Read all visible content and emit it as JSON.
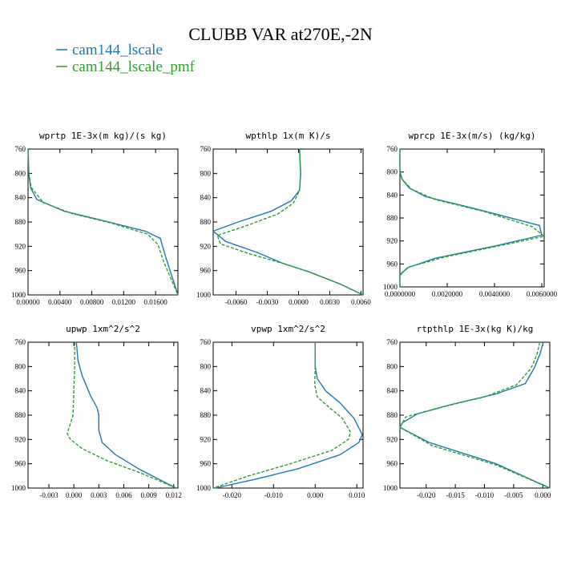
{
  "figure": {
    "title": "CLUBB VAR at270E,-2N",
    "colors": {
      "s0": "#1f77b4",
      "s1": "#2ca02c"
    },
    "legend": [
      {
        "name": "cam144_lscale",
        "color": "#1f77b4",
        "dash": "solid"
      },
      {
        "name": "cam144_lscale_pmf",
        "color": "#2ca02c",
        "dash": "dashed"
      }
    ]
  },
  "chart_data": [
    {
      "type": "line",
      "title": "wprtp  1E-3x(m kg)/(s kg)",
      "xlim": [
        0,
        0.0188
      ],
      "ylim": [
        760,
        1000
      ],
      "xticks": [
        0,
        0.004,
        0.008,
        0.012,
        0.016
      ],
      "xtick_labels": [
        "0.00000",
        "0.00400",
        "0.00800",
        "0.01200",
        "0.01600"
      ],
      "yticks": [
        760,
        800,
        840,
        880,
        920,
        960,
        1000
      ],
      "ytick_labels": [
        "760",
        "800",
        "840",
        "880",
        "920",
        "960",
        "1000"
      ],
      "series": [
        {
          "name": "cam144_lscale",
          "x": [
            0.0,
            0.0001,
            0.0003,
            0.0011,
            0.0045,
            0.0095,
            0.0147,
            0.0166,
            0.0172,
            0.0188
          ],
          "y": [
            760,
            800,
            823,
            843,
            862,
            878,
            895,
            907,
            935,
            1000
          ]
        },
        {
          "name": "cam144_lscale_pmf",
          "x": [
            0.0,
            0.0001,
            0.0004,
            0.0019,
            0.0055,
            0.0105,
            0.015,
            0.0163,
            0.017,
            0.0188
          ],
          "y": [
            760,
            800,
            823,
            848,
            866,
            882,
            900,
            917,
            945,
            1000
          ]
        }
      ]
    },
    {
      "type": "line",
      "title": "wpthlp  1x(m K)/s",
      "xlim": [
        -0.0082,
        0.0062
      ],
      "ylim": [
        760,
        1000
      ],
      "xticks": [
        -0.006,
        -0.003,
        0.0,
        0.003,
        0.006
      ],
      "xtick_labels": [
        "-0.0060",
        "-0.0030",
        "0.0000",
        "0.0030",
        "0.0060"
      ],
      "yticks": [
        760,
        800,
        840,
        880,
        920,
        960,
        1000
      ],
      "ytick_labels": [
        "760",
        "800",
        "840",
        "880",
        "920",
        "960",
        "1000"
      ],
      "series": [
        {
          "name": "cam144_lscale",
          "x": [
            0.0001,
            0.0002,
            0.0001,
            -0.0007,
            -0.0026,
            -0.0058,
            -0.0082,
            -0.007,
            -0.004,
            -0.0015,
            0.001,
            0.004,
            0.0062
          ],
          "y": [
            760,
            800,
            828,
            845,
            862,
            880,
            895,
            912,
            930,
            948,
            962,
            982,
            1000
          ]
        },
        {
          "name": "cam144_lscale_pmf",
          "x": [
            0.0001,
            0.0002,
            0.0001,
            -0.0005,
            -0.002,
            -0.005,
            -0.0078,
            -0.0075,
            -0.0048,
            -0.0015,
            0.001,
            0.004,
            0.0062
          ],
          "y": [
            760,
            800,
            828,
            849,
            867,
            886,
            902,
            916,
            932,
            948,
            962,
            982,
            1000
          ]
        }
      ]
    },
    {
      "type": "line",
      "title": "wprcp  1E-3x(m/s) (kg/kg)",
      "xlim": [
        0,
        0.0061
      ],
      "ylim": [
        760,
        1000
      ],
      "xticks": [
        0,
        0.002,
        0.004,
        0.006
      ],
      "xtick_labels": [
        "0.0000000",
        "0.0020000",
        "0.0040000",
        "0.0060000"
      ],
      "yticks": [
        760,
        800,
        840,
        880,
        920,
        960,
        1000
      ],
      "ytick_labels": [
        "760",
        "800",
        "840",
        "880",
        "920",
        "960",
        "1000"
      ],
      "series": [
        {
          "name": "cam144_lscale",
          "x": [
            0.0,
            0.0,
            0.0001,
            0.0004,
            0.0011,
            0.0031,
            0.0059,
            0.006,
            0.0041,
            0.0015,
            0.0003,
            0.0,
            0.0
          ],
          "y": [
            760,
            800,
            813,
            828,
            843,
            863,
            893,
            910,
            928,
            950,
            967,
            980,
            1000
          ]
        },
        {
          "name": "cam144_lscale_pmf",
          "x": [
            0.0,
            0.0,
            0.0001,
            0.0005,
            0.0015,
            0.0035,
            0.0056,
            0.0061,
            0.0046,
            0.0019,
            0.0004,
            0.0,
            0.0
          ],
          "y": [
            760,
            800,
            813,
            830,
            848,
            868,
            895,
            912,
            925,
            948,
            965,
            978,
            1000
          ]
        }
      ]
    },
    {
      "type": "line",
      "title": "upwp  1xm^2/s^2",
      "xlim": [
        -0.0055,
        0.0125
      ],
      "ylim": [
        760,
        1000
      ],
      "xticks": [
        -0.003,
        0.0,
        0.003,
        0.006,
        0.009,
        0.012
      ],
      "xtick_labels": [
        "-0.003",
        "0.000",
        "0.003",
        "0.006",
        "0.009",
        "0.012"
      ],
      "yticks": [
        760,
        800,
        840,
        880,
        920,
        960,
        1000
      ],
      "ytick_labels": [
        "760",
        "800",
        "840",
        "880",
        "920",
        "960",
        "1000"
      ],
      "series": [
        {
          "name": "cam144_lscale",
          "x": [
            0.0003,
            0.0005,
            0.001,
            0.002,
            0.0028,
            0.003,
            0.003,
            0.0034,
            0.005,
            0.008,
            0.0123
          ],
          "y": [
            760,
            790,
            815,
            848,
            868,
            880,
            905,
            925,
            945,
            970,
            1000
          ]
        },
        {
          "name": "cam144_lscale_pmf",
          "x": [
            0.0001,
            0.0001,
            0.0,
            -0.0001,
            -0.0005,
            -0.0008,
            -0.0004,
            0.001,
            0.004,
            0.008,
            0.0123
          ],
          "y": [
            760,
            800,
            840,
            880,
            898,
            910,
            920,
            935,
            955,
            975,
            1000
          ]
        }
      ]
    },
    {
      "type": "line",
      "title": "vpwp  1xm^2/s^2",
      "xlim": [
        -0.0245,
        0.0115
      ],
      "ylim": [
        760,
        1000
      ],
      "xticks": [
        -0.02,
        -0.01,
        0.0,
        0.01
      ],
      "xtick_labels": [
        "-0.020",
        "-0.010",
        "0.000",
        "0.010"
      ],
      "yticks": [
        760,
        800,
        840,
        880,
        920,
        960,
        1000
      ],
      "ytick_labels": [
        "760",
        "800",
        "840",
        "880",
        "920",
        "960",
        "1000"
      ],
      "series": [
        {
          "name": "cam144_lscale",
          "x": [
            0.0,
            0.0,
            0.0005,
            0.0025,
            0.006,
            0.0093,
            0.0113,
            0.0105,
            0.006,
            -0.004,
            -0.014,
            -0.024
          ],
          "y": [
            760,
            800,
            820,
            840,
            860,
            885,
            912,
            925,
            945,
            968,
            985,
            1000
          ]
        },
        {
          "name": "cam144_lscale_pmf",
          "x": [
            0.0,
            0.0,
            -0.0001,
            0.0005,
            0.0035,
            0.0065,
            0.0085,
            0.008,
            0.004,
            -0.006,
            -0.016,
            -0.0245
          ],
          "y": [
            760,
            800,
            830,
            850,
            868,
            885,
            908,
            920,
            938,
            960,
            980,
            1000
          ]
        }
      ]
    },
    {
      "type": "line",
      "title": "rtpthlp  1E-3x(kg K)/kg",
      "xlim": [
        -0.0245,
        0.0012
      ],
      "ylim": [
        760,
        1000
      ],
      "xticks": [
        -0.02,
        -0.015,
        -0.01,
        -0.005,
        0.0
      ],
      "xtick_labels": [
        "-0.020",
        "-0.015",
        "-0.010",
        "-0.005",
        "0.000"
      ],
      "yticks": [
        760,
        800,
        840,
        880,
        920,
        960,
        1000
      ],
      "ytick_labels": [
        "760",
        "800",
        "840",
        "880",
        "920",
        "960",
        "1000"
      ],
      "series": [
        {
          "name": "cam144_lscale",
          "x": [
            0.0001,
            -0.0005,
            -0.0015,
            -0.003,
            -0.008,
            -0.0155,
            -0.0215,
            -0.024,
            -0.0245,
            -0.0195,
            -0.008,
            0.0012
          ],
          "y": [
            760,
            780,
            803,
            828,
            845,
            862,
            878,
            892,
            900,
            925,
            960,
            1000
          ]
        },
        {
          "name": "cam144_lscale_pmf",
          "x": [
            -0.0005,
            -0.001,
            -0.002,
            -0.0045,
            -0.01,
            -0.0175,
            -0.0235,
            -0.0245,
            -0.019,
            -0.008,
            0.0012
          ],
          "y": [
            760,
            780,
            803,
            830,
            850,
            867,
            883,
            900,
            930,
            962,
            1000
          ]
        }
      ]
    }
  ]
}
